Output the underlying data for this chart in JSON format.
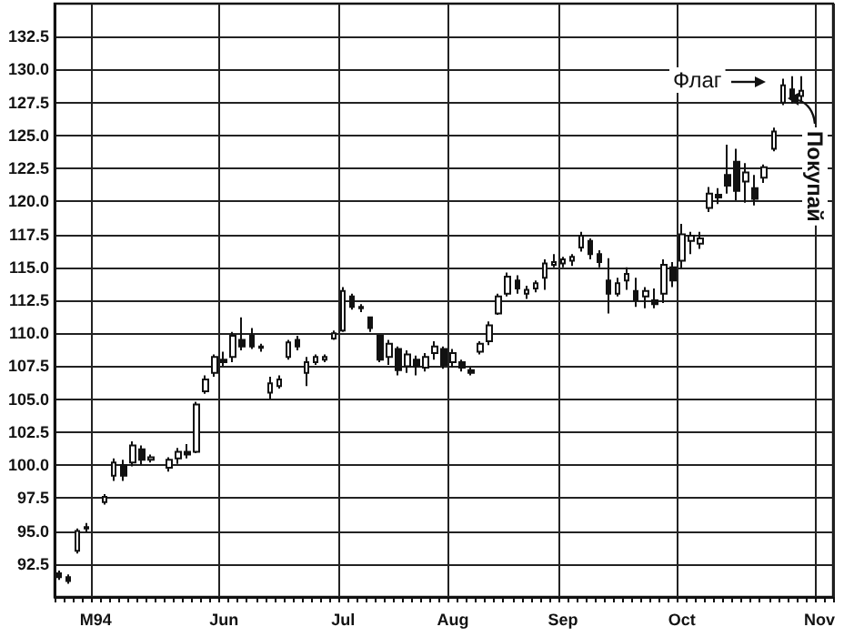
{
  "chart_data": {
    "type": "candlestick",
    "color": "#111111",
    "categories": [
      null,
      null,
      null,
      null,
      "M94",
      null,
      null,
      null,
      null,
      null,
      null,
      null,
      null,
      null,
      null,
      null,
      null,
      null,
      "Jun",
      null,
      null,
      null,
      null,
      null,
      null,
      null,
      null,
      null,
      null,
      null,
      null,
      "Jul",
      null,
      null,
      null,
      null,
      null,
      null,
      null,
      null,
      null,
      null,
      null,
      "Aug",
      null,
      null,
      null,
      null,
      null,
      null,
      null,
      null,
      null,
      null,
      null,
      "Sep",
      null,
      null,
      null,
      null,
      null,
      null,
      null,
      null,
      null,
      null,
      null,
      null,
      "Oct",
      null,
      null,
      null,
      null,
      null,
      null,
      null,
      null,
      null,
      null,
      null,
      null,
      null,
      null,
      "Nov",
      null
    ],
    "ohlc": [
      [
        91.8,
        92.0,
        91.3,
        91.5
      ],
      [
        91.5,
        91.7,
        91.0,
        91.2
      ],
      [
        93.5,
        95.2,
        93.3,
        95.0
      ],
      [
        95.2,
        95.6,
        94.9,
        95.3
      ],
      null,
      [
        97.2,
        97.8,
        97.0,
        97.6
      ],
      [
        99.2,
        100.5,
        98.8,
        100.2
      ],
      [
        100.0,
        100.4,
        98.8,
        99.2
      ],
      [
        100.2,
        101.8,
        99.9,
        101.5
      ],
      [
        101.2,
        101.5,
        100.0,
        100.4
      ],
      [
        100.4,
        100.8,
        100.2,
        100.6
      ],
      null,
      [
        99.8,
        100.6,
        99.5,
        100.4
      ],
      [
        100.5,
        101.3,
        100.1,
        101.0
      ],
      [
        101.0,
        101.6,
        100.5,
        100.8
      ],
      [
        101.0,
        104.8,
        100.9,
        104.6
      ],
      [
        105.6,
        106.8,
        105.4,
        106.5
      ],
      [
        107.0,
        108.4,
        106.7,
        108.2
      ],
      [
        108.0,
        108.6,
        107.5,
        107.8
      ],
      [
        108.2,
        110.1,
        107.8,
        109.8
      ],
      [
        109.5,
        111.2,
        108.7,
        109.0
      ],
      [
        109.8,
        110.4,
        108.8,
        109.0
      ],
      [
        109.0,
        109.2,
        108.6,
        108.9
      ],
      [
        105.5,
        106.7,
        105.0,
        106.2
      ],
      [
        106.0,
        106.8,
        105.8,
        106.5
      ],
      [
        108.2,
        109.5,
        108.0,
        109.3
      ],
      [
        109.5,
        109.8,
        108.7,
        109.0
      ],
      [
        107.0,
        108.2,
        106.0,
        107.8
      ],
      [
        107.8,
        108.4,
        107.6,
        108.2
      ],
      [
        108.0,
        108.4,
        107.8,
        108.2
      ],
      [
        109.6,
        110.2,
        109.5,
        110.0
      ],
      [
        110.2,
        113.5,
        110.1,
        113.2
      ],
      [
        112.8,
        113.0,
        111.8,
        112.0
      ],
      [
        112.0,
        112.2,
        111.6,
        111.9
      ],
      [
        111.2,
        111.2,
        110.1,
        110.4
      ],
      [
        109.8,
        109.8,
        107.8,
        108.0
      ],
      [
        108.2,
        109.5,
        107.6,
        109.2
      ],
      [
        108.8,
        109.0,
        106.8,
        107.2
      ],
      [
        107.5,
        108.7,
        107.0,
        108.4
      ],
      [
        108.0,
        108.3,
        106.8,
        107.5
      ],
      [
        107.4,
        108.5,
        107.1,
        108.2
      ],
      [
        108.5,
        109.4,
        108.0,
        109.0
      ],
      [
        108.8,
        109.0,
        107.3,
        107.6
      ],
      [
        107.8,
        108.8,
        107.4,
        108.5
      ],
      [
        107.8,
        108.0,
        107.1,
        107.4
      ],
      [
        107.2,
        107.4,
        106.8,
        107.0
      ],
      [
        108.6,
        109.4,
        108.4,
        109.2
      ],
      [
        109.4,
        110.9,
        109.1,
        110.6
      ],
      [
        111.5,
        113.0,
        111.4,
        112.8
      ],
      [
        113.0,
        114.6,
        112.8,
        114.3
      ],
      [
        114.0,
        114.4,
        113.0,
        113.4
      ],
      [
        113.0,
        113.6,
        112.6,
        113.3
      ],
      [
        113.4,
        114.0,
        113.1,
        113.8
      ],
      [
        114.2,
        115.6,
        113.3,
        115.3
      ],
      [
        115.2,
        116.0,
        115.0,
        115.4
      ],
      [
        115.3,
        115.8,
        115.0,
        115.6
      ],
      [
        115.5,
        116.0,
        115.1,
        115.8
      ],
      [
        116.5,
        117.7,
        116.2,
        117.4
      ],
      [
        117.0,
        117.2,
        115.6,
        116.0
      ],
      [
        116.0,
        116.3,
        115.0,
        115.4
      ],
      [
        114.0,
        115.7,
        111.5,
        113.0
      ],
      [
        113.0,
        114.2,
        112.8,
        113.8
      ],
      [
        114.0,
        115.0,
        113.3,
        114.5
      ],
      [
        113.2,
        114.2,
        112.0,
        112.5
      ],
      [
        112.8,
        113.5,
        111.9,
        113.2
      ],
      [
        112.5,
        113.4,
        111.9,
        112.2
      ],
      [
        113.0,
        115.6,
        112.3,
        115.2
      ],
      [
        115.0,
        115.4,
        113.5,
        114.0
      ],
      [
        115.5,
        118.3,
        114.9,
        117.5
      ],
      [
        117.0,
        117.7,
        116.0,
        117.4
      ],
      [
        116.8,
        117.7,
        116.4,
        117.2
      ],
      [
        119.5,
        121.1,
        119.2,
        120.6
      ],
      [
        120.5,
        121.0,
        119.8,
        120.3
      ],
      [
        122.0,
        124.3,
        120.6,
        121.2
      ],
      [
        123.0,
        124.0,
        120.1,
        120.8
      ],
      [
        121.5,
        122.9,
        119.9,
        122.2
      ],
      [
        121.0,
        122.0,
        119.7,
        120.2
      ],
      [
        121.8,
        122.8,
        121.4,
        122.6
      ],
      [
        124.0,
        125.6,
        123.8,
        125.3
      ],
      [
        127.5,
        129.3,
        127.3,
        128.8
      ],
      [
        128.5,
        129.5,
        127.4,
        127.8
      ],
      [
        128.0,
        129.5,
        127.6,
        128.4
      ],
      null,
      null,
      null
    ],
    "ylim": [
      90,
      135
    ],
    "yticks": [
      {
        "value": 92.5,
        "label": "92.5"
      },
      {
        "value": 95,
        "label": "95.0"
      },
      {
        "value": 97.5,
        "label": "97.5"
      },
      {
        "value": 100,
        "label": "100.0"
      },
      {
        "value": 102.5,
        "label": "102.5"
      },
      {
        "value": 105,
        "label": "105.0"
      },
      {
        "value": 107.5,
        "label": "107.5"
      },
      {
        "value": 110,
        "label": "110.0"
      },
      {
        "value": 112.5,
        "label": "112.5"
      },
      {
        "value": 115,
        "label": "115.0"
      },
      {
        "value": 117.5,
        "label": "117.5"
      },
      {
        "value": 120,
        "label": "120.0"
      },
      {
        "value": 122.5,
        "label": "122.5"
      },
      {
        "value": 125,
        "label": "125.0"
      },
      {
        "value": 127.5,
        "label": "127.5"
      },
      {
        "value": 130,
        "label": "130.0"
      },
      {
        "value": 132.5,
        "label": "132.5"
      }
    ],
    "grid": true,
    "annotations": [
      "Флаг",
      "Покупай"
    ]
  }
}
